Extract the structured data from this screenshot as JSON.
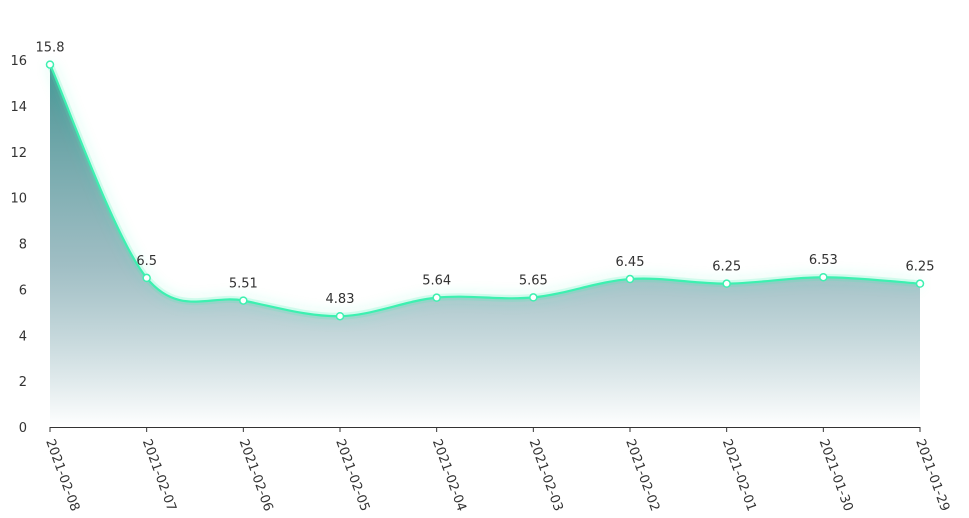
{
  "chart_data": {
    "type": "area",
    "title": "",
    "xlabel": "",
    "ylabel": "",
    "categories": [
      "2021-02-08",
      "2021-02-07",
      "2021-02-06",
      "2021-02-05",
      "2021-02-04",
      "2021-02-03",
      "2021-02-02",
      "2021-02-01",
      "2021-01-30",
      "2021-01-29"
    ],
    "values": [
      15.8,
      6.5,
      5.51,
      4.83,
      5.64,
      5.65,
      6.45,
      6.25,
      6.53,
      6.25
    ],
    "value_labels": [
      "15.8",
      "6.5",
      "5.51",
      "4.83",
      "5.64",
      "5.65",
      "6.45",
      "6.25",
      "6.53",
      "6.25"
    ],
    "yticks": [
      "0",
      "2",
      "4",
      "6",
      "8",
      "10",
      "12",
      "14",
      "16"
    ],
    "ylim": [
      0,
      16
    ],
    "smooth": true,
    "grid": false,
    "legend": "none",
    "colors": {
      "line": "#3df0b0",
      "area_top": "#3e8e8e",
      "area_bottom": "#ffffff",
      "point_fill": "#ffffff",
      "axis": "#333333",
      "text": "#333333"
    }
  }
}
